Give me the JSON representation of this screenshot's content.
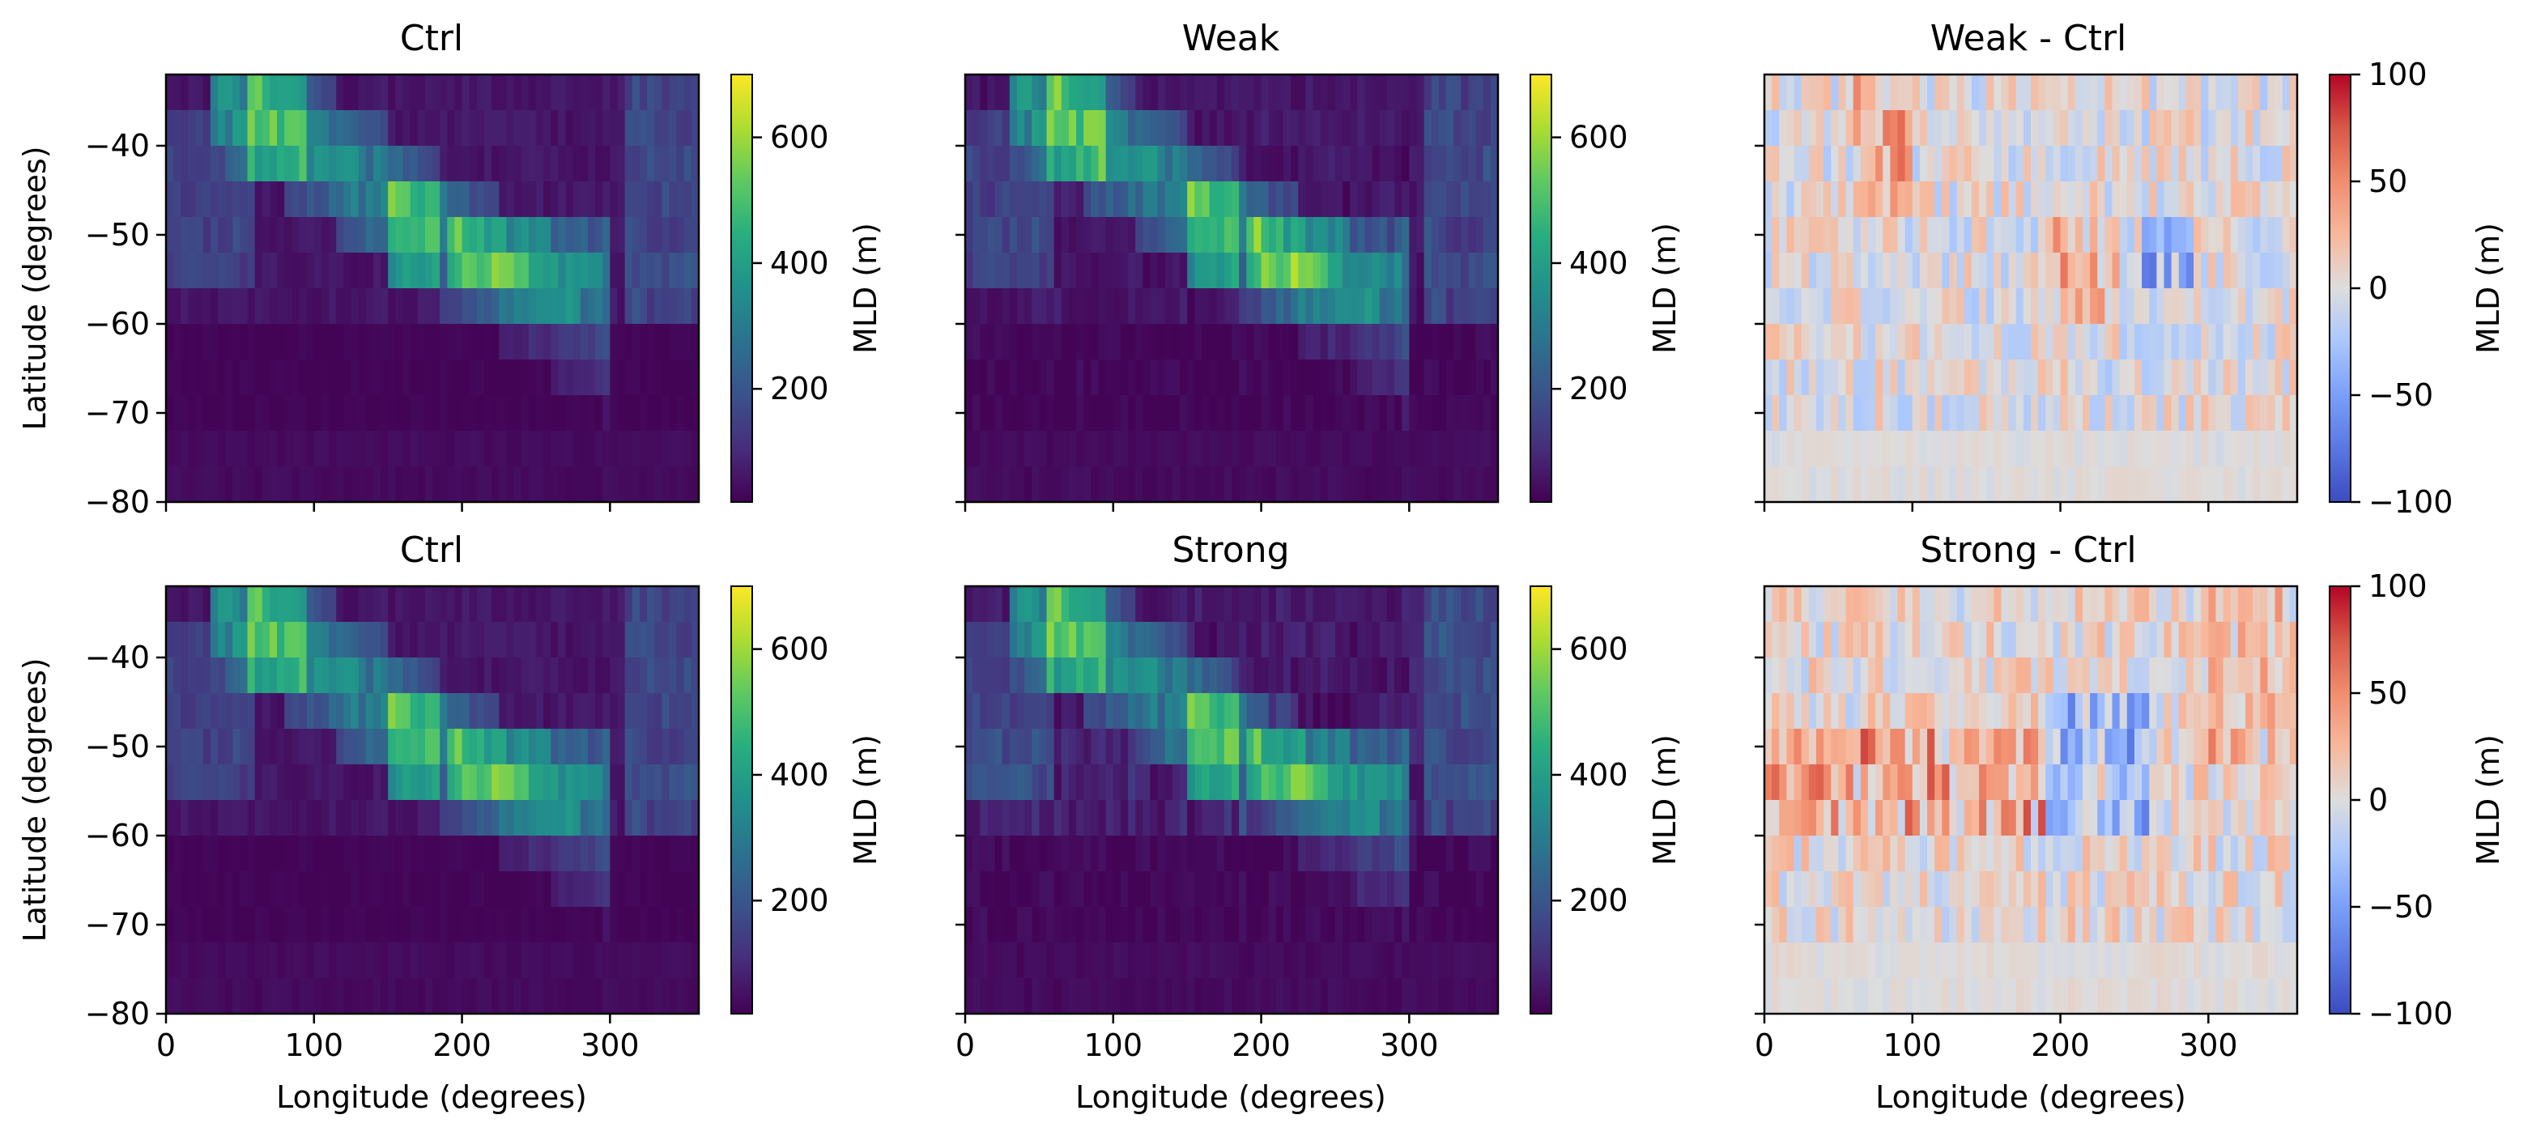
{
  "figure": {
    "colors": {
      "viridis": "viridis",
      "diverging": "coolwarm",
      "land_diff": "#dcdcdc"
    }
  },
  "chart_data": [
    {
      "type": "heatmap",
      "title": "Ctrl",
      "xlabel": "",
      "ylabel": "Latitude (degrees)",
      "colorbar_label": "MLD (m)",
      "colormap": "viridis",
      "vlim": [
        20,
        700
      ],
      "xlim": [
        0,
        360
      ],
      "ylim": [
        -80,
        -32
      ],
      "xticks": [],
      "yticks": [
        -40,
        -50,
        -60,
        -70,
        -80
      ],
      "cbticks": [
        200,
        400,
        600
      ],
      "field": "ctrl"
    },
    {
      "type": "heatmap",
      "title": "Weak",
      "xlabel": "",
      "ylabel": "",
      "colorbar_label": "MLD (m)",
      "colormap": "viridis",
      "vlim": [
        20,
        700
      ],
      "xlim": [
        0,
        360
      ],
      "ylim": [
        -80,
        -32
      ],
      "xticks": [],
      "yticks": [],
      "cbticks": [
        200,
        400,
        600
      ],
      "field": "weak"
    },
    {
      "type": "heatmap",
      "title": "Weak - Ctrl",
      "xlabel": "",
      "ylabel": "",
      "colorbar_label": "MLD (m)",
      "colormap": "coolwarm",
      "vlim": [
        -100,
        100
      ],
      "xlim": [
        0,
        360
      ],
      "ylim": [
        -80,
        -32
      ],
      "xticks": [],
      "yticks": [],
      "cbticks": [
        100,
        50,
        0,
        -50,
        -100
      ],
      "field": "weak_diff"
    },
    {
      "type": "heatmap",
      "title": "Ctrl",
      "xlabel": "Longitude (degrees)",
      "ylabel": "Latitude (degrees)",
      "colorbar_label": "MLD (m)",
      "colormap": "viridis",
      "vlim": [
        20,
        700
      ],
      "xlim": [
        0,
        360
      ],
      "ylim": [
        -80,
        -32
      ],
      "xticks": [
        0,
        100,
        200,
        300
      ],
      "yticks": [
        -40,
        -50,
        -60,
        -70,
        -80
      ],
      "cbticks": [
        200,
        400,
        600
      ],
      "field": "ctrl"
    },
    {
      "type": "heatmap",
      "title": "Strong",
      "xlabel": "Longitude (degrees)",
      "ylabel": "",
      "colorbar_label": "MLD (m)",
      "colormap": "viridis",
      "vlim": [
        20,
        700
      ],
      "xlim": [
        0,
        360
      ],
      "ylim": [
        -80,
        -32
      ],
      "xticks": [
        0,
        100,
        200,
        300
      ],
      "yticks": [],
      "cbticks": [
        200,
        400,
        600
      ],
      "field": "strong"
    },
    {
      "type": "heatmap",
      "title": "Strong - Ctrl",
      "xlabel": "Longitude (degrees)",
      "ylabel": "",
      "colorbar_label": "MLD (m)",
      "colormap": "coolwarm",
      "vlim": [
        -100,
        100
      ],
      "xlim": [
        0,
        360
      ],
      "ylim": [
        -80,
        -32
      ],
      "xticks": [
        0,
        100,
        200,
        300
      ],
      "yticks": [],
      "cbticks": [
        100,
        50,
        0,
        -50,
        -100
      ],
      "field": "strong_diff"
    }
  ]
}
